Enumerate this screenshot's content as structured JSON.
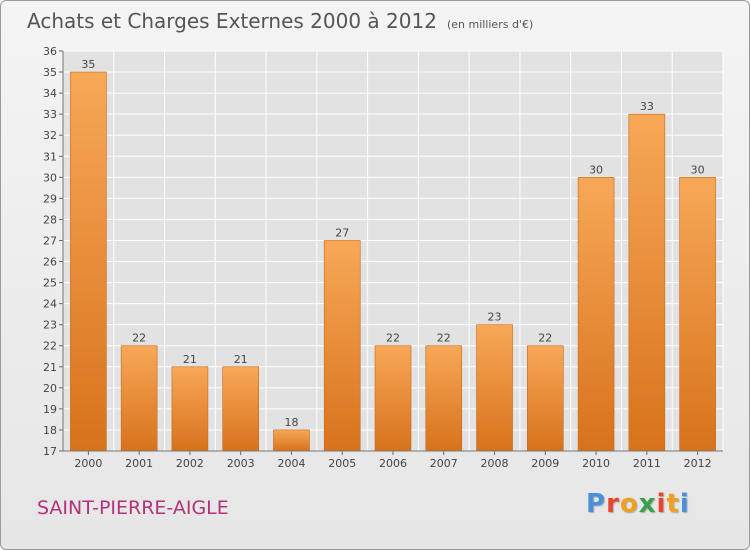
{
  "header": {
    "title": "Achats et Charges Externes 2000 à 2012",
    "unit": "(en milliers d'€)"
  },
  "footer": {
    "commune": "SAINT-PIERRE-AIGLE",
    "logo_text": "Proxiti",
    "logo_colors": [
      "#4a90d9",
      "#e8452c",
      "#f0a020",
      "#3aa04a",
      "#e8452c",
      "#f0a020",
      "#4a90d9"
    ]
  },
  "colors": {
    "bar_light": "#f7a857",
    "bar_dark": "#d8721c",
    "grid": "#ffffff",
    "axis_text": "#444444"
  },
  "chart_data": {
    "type": "bar",
    "title": "Achats et Charges Externes 2000 à 2012",
    "subtitle": "(en milliers d'€)",
    "categories": [
      "2000",
      "2001",
      "2002",
      "2003",
      "2004",
      "2005",
      "2006",
      "2007",
      "2008",
      "2009",
      "2010",
      "2011",
      "2012"
    ],
    "values": [
      35,
      22,
      21,
      21,
      18,
      27,
      22,
      22,
      23,
      22,
      30,
      33,
      30
    ],
    "ylim": [
      17,
      36
    ],
    "yticks": [
      17,
      18,
      19,
      20,
      21,
      22,
      23,
      24,
      25,
      26,
      27,
      28,
      29,
      30,
      31,
      32,
      33,
      34,
      35,
      36
    ],
    "grid": true,
    "data_labels": true
  }
}
